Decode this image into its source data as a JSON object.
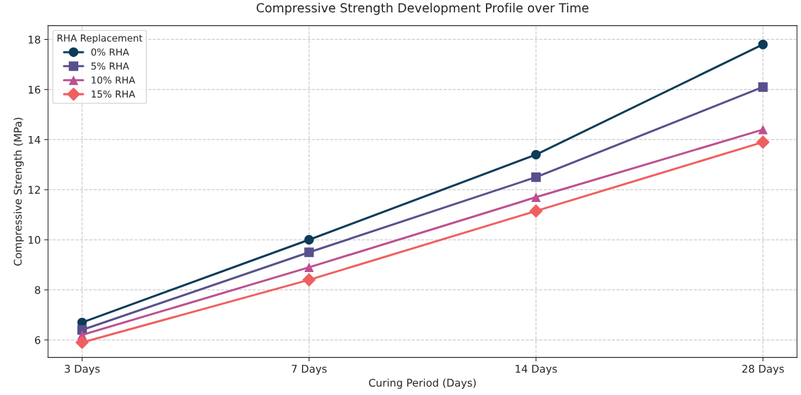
{
  "chart_data": {
    "type": "line",
    "title": "Compressive Strength Development Profile over Time",
    "xlabel": "Curing Period (Days)",
    "ylabel": "Compressive Strength (MPa)",
    "legend_title": "RHA Replacement",
    "categories": [
      "3 Days",
      "7 Days",
      "14 Days",
      "28 Days"
    ],
    "series": [
      {
        "name": "0% RHA",
        "color": "#0d3b58",
        "marker": "circle",
        "values": [
          6.7,
          10.0,
          13.4,
          17.8
        ]
      },
      {
        "name": "5% RHA",
        "color": "#58508d",
        "marker": "square",
        "values": [
          6.4,
          9.5,
          12.5,
          16.1
        ]
      },
      {
        "name": "10% RHA",
        "color": "#bc5090",
        "marker": "triangle",
        "values": [
          6.2,
          8.9,
          11.7,
          14.4
        ]
      },
      {
        "name": "15% RHA",
        "color": "#f05f5f",
        "marker": "diamond",
        "values": [
          5.9,
          8.4,
          11.15,
          13.9
        ]
      }
    ],
    "ylim": [
      5.3,
      18.55
    ],
    "yticks": [
      6,
      8,
      10,
      12,
      14,
      16,
      18
    ],
    "grid": true,
    "legend": "top left",
    "line_style": "solid"
  }
}
